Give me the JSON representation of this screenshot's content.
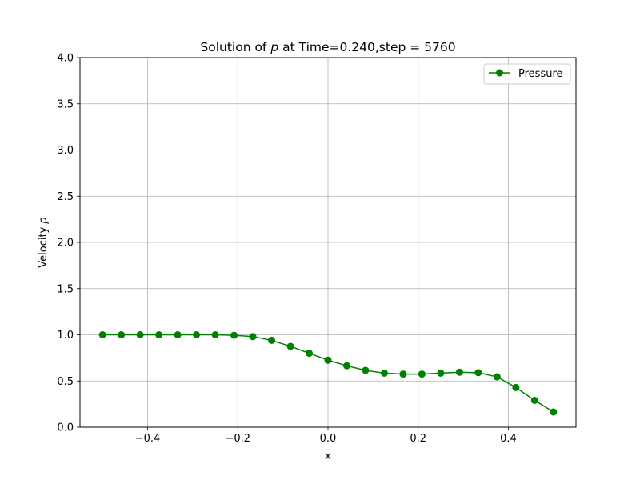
{
  "chart_data": {
    "type": "line",
    "title_prefix": "Solution of ",
    "title_symbol": "p",
    "title_suffix": " at Time=0.240,step = 5760",
    "xlabel": "x",
    "ylabel_prefix": "Velocity ",
    "ylabel_symbol": "p",
    "xlim": [
      -0.55,
      0.55
    ],
    "ylim": [
      0,
      4.0
    ],
    "xticks": [
      -0.4,
      -0.2,
      0.0,
      0.2,
      0.4
    ],
    "xtick_labels": [
      "−0.4",
      "−0.2",
      "0.0",
      "0.2",
      "0.4"
    ],
    "yticks": [
      0.0,
      0.5,
      1.0,
      1.5,
      2.0,
      2.5,
      3.0,
      3.5,
      4.0
    ],
    "ytick_labels": [
      "0.0",
      "0.5",
      "1.0",
      "1.5",
      "2.0",
      "2.5",
      "3.0",
      "3.5",
      "4.0"
    ],
    "grid": true,
    "legend_position": "upper-right",
    "series": [
      {
        "name": "Pressure",
        "color": "#008000",
        "marker": "circle",
        "x": [
          -0.5,
          -0.4583,
          -0.4167,
          -0.375,
          -0.3333,
          -0.2917,
          -0.25,
          -0.2083,
          -0.1667,
          -0.125,
          -0.0833,
          -0.0417,
          0.0,
          0.0417,
          0.0833,
          0.125,
          0.1667,
          0.2083,
          0.25,
          0.2917,
          0.3333,
          0.375,
          0.4167,
          0.4583,
          0.5
        ],
        "y": [
          1.0,
          1.0,
          1.0,
          1.0,
          1.0,
          1.0,
          1.0,
          0.995,
          0.98,
          0.94,
          0.875,
          0.8,
          0.725,
          0.665,
          0.615,
          0.585,
          0.575,
          0.575,
          0.585,
          0.595,
          0.59,
          0.545,
          0.43,
          0.29,
          0.165
        ]
      }
    ]
  }
}
